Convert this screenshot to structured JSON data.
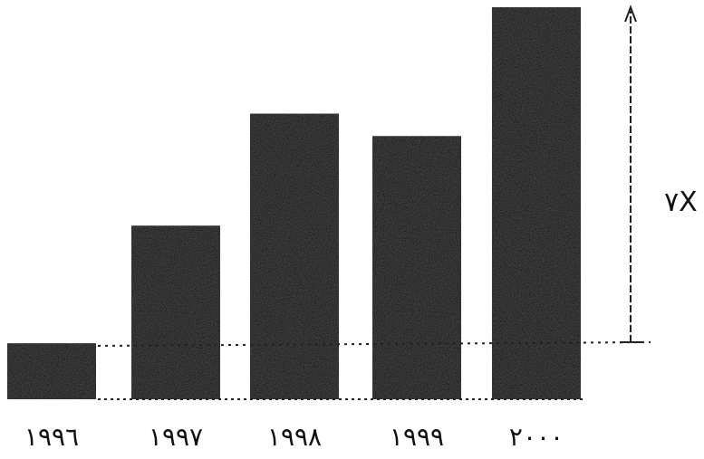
{
  "chart_data": {
    "type": "bar",
    "categories": [
      "١٩٩٦",
      "١٩٩٧",
      "١٩٩٨",
      "١٩٩٩",
      "٢٠٠٠"
    ],
    "values": [
      1,
      3.1,
      5.1,
      4.7,
      7
    ],
    "annotation": "٧X",
    "title": "",
    "xlabel": "",
    "ylabel": "",
    "grid": false,
    "bar_color": "#3a3a3a"
  }
}
